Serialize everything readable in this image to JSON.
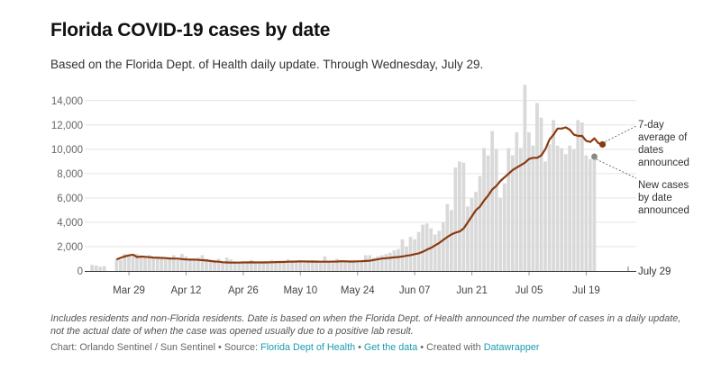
{
  "header": {
    "title": "Florida COVID-19 cases by date",
    "subtitle": "Based on the Florida Dept. of Health daily update. Through Wednesday, July 29."
  },
  "notes": "Includes residents and non-Florida residents. Date is based on when the Florida Dept. of Health announced the number of cases in a daily update, not the actual date of when the case was opened usually due to a positive lab result.",
  "credits": {
    "prefix": "Chart: Orlando Sentinel / Sun Sentinel • Source: ",
    "source_link": "Florida Dept of Health",
    "sep1": " • ",
    "data_link": "Get the data",
    "sep2": " • Created with ",
    "tool_link": "Datawrapper"
  },
  "colors": {
    "bars": "#d9d9d9",
    "line": "#8b3a10",
    "grid": "#e4e4e4",
    "link": "#1a9bb0",
    "new_cases_dot": "#888888"
  },
  "chart_data": {
    "type": "bar",
    "x_start": "2020-03-20",
    "x_end": "2020-07-29",
    "ylim": [
      0,
      14500
    ],
    "yticks": [
      0,
      2000,
      4000,
      6000,
      8000,
      10000,
      12000,
      14000
    ],
    "ytick_labels": [
      "0",
      "2,000",
      "4,000",
      "6,000",
      "8,000",
      "10,000",
      "12,000",
      "14,000"
    ],
    "xticks": [
      {
        "date": "2020-03-29",
        "label": "Mar 29"
      },
      {
        "date": "2020-04-12",
        "label": "Apr 12"
      },
      {
        "date": "2020-04-26",
        "label": "Apr 26"
      },
      {
        "date": "2020-05-10",
        "label": "May 10"
      },
      {
        "date": "2020-05-24",
        "label": "May 24"
      },
      {
        "date": "2020-06-07",
        "label": "Jun 07"
      },
      {
        "date": "2020-06-21",
        "label": "Jun 21"
      },
      {
        "date": "2020-07-05",
        "label": "Jul 05"
      },
      {
        "date": "2020-07-19",
        "label": "Jul 19"
      }
    ],
    "grid": true,
    "series": [
      {
        "name": "New cases by date announced",
        "kind": "bars",
        "start_date": "2020-03-20",
        "values": [
          500,
          450,
          350,
          400,
          0,
          0,
          1000,
          900,
          1400,
          1300,
          1200,
          1400,
          1100,
          1200,
          1300,
          1100,
          1200,
          1150,
          1100,
          1000,
          1300,
          900,
          1400,
          1200,
          1000,
          900,
          1100,
          1300,
          1000,
          800,
          900,
          1000,
          700,
          1100,
          950,
          800,
          700,
          650,
          750,
          900,
          700,
          650,
          800,
          750,
          900,
          700,
          800,
          650,
          950,
          750,
          700,
          800,
          650,
          850,
          900,
          700,
          800,
          1200,
          800,
          650,
          1000,
          800,
          750,
          850,
          800,
          700,
          900,
          1300,
          1300,
          1100,
          1200,
          1300,
          1400,
          1500,
          1700,
          1800,
          2600,
          2000,
          2800,
          2600,
          3200,
          3800,
          3900,
          3500,
          3000,
          3300,
          4000,
          5500,
          5000,
          8500,
          9000,
          8900,
          5300,
          6000,
          6500,
          7800,
          10100,
          9500,
          11500,
          10000,
          6000,
          7200,
          10100,
          9500,
          11400,
          10100,
          15300,
          11400,
          10300,
          13800,
          12600,
          9000,
          10400,
          12400,
          10300,
          10100,
          9600,
          10300,
          10000,
          12400,
          12200,
          9500,
          9200,
          9400
        ],
        "color": "#d9d9d9"
      },
      {
        "name": "7-day average of dates announced",
        "kind": "line",
        "start_date": "2020-03-26",
        "values": [
          950,
          1080,
          1200,
          1280,
          1340,
          1150,
          1180,
          1160,
          1130,
          1100,
          1090,
          1070,
          1060,
          1030,
          1020,
          1010,
          980,
          950,
          930,
          940,
          910,
          890,
          860,
          820,
          780,
          760,
          720,
          700,
          690,
          690,
          690,
          700,
          700,
          710,
          700,
          700,
          700,
          710,
          720,
          730,
          740,
          740,
          760,
          770,
          780,
          790,
          780,
          780,
          770,
          770,
          760,
          760,
          760,
          770,
          780,
          800,
          790,
          780,
          780,
          790,
          800,
          820,
          840,
          900,
          970,
          1020,
          1050,
          1080,
          1120,
          1150,
          1190,
          1250,
          1300,
          1380,
          1450,
          1580,
          1750,
          1900,
          2100,
          2300,
          2550,
          2800,
          3000,
          3150,
          3250,
          3500,
          4000,
          4500,
          5000,
          5300,
          5800,
          6200,
          6700,
          7000,
          7400,
          7700,
          8000,
          8300,
          8500,
          8700,
          8900,
          9200,
          9300,
          9300,
          9500,
          10000,
          10800,
          11200,
          11700,
          11700,
          11800,
          11600,
          11200,
          11100,
          11100,
          10700,
          10600,
          10900,
          10500,
          10400
        ],
        "color": "#8b3a10"
      }
    ],
    "annotations": {
      "avg_label": [
        "7-day",
        "average of",
        "dates",
        "announced"
      ],
      "new_label": [
        "New cases",
        "by date",
        "announced"
      ],
      "date_label": "July 29"
    }
  }
}
